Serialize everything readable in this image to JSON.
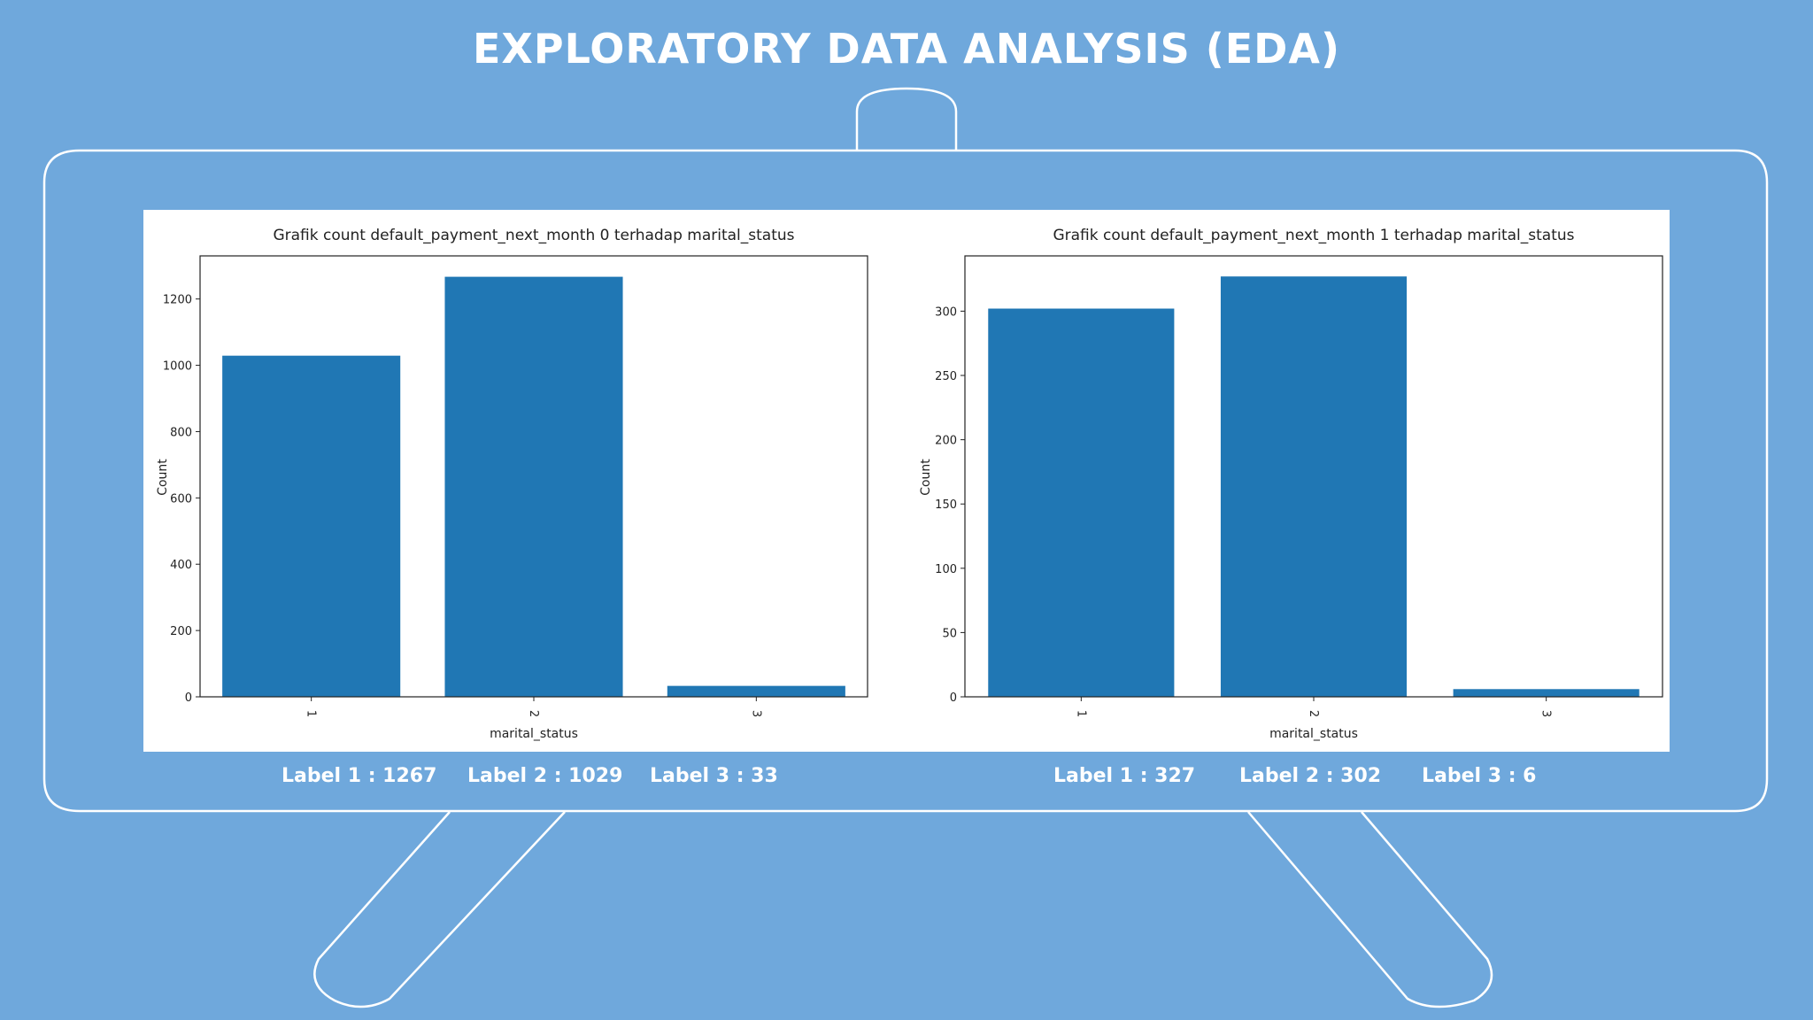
{
  "page": {
    "title": "EXPLORATORY DATA ANALYSIS (EDA)"
  },
  "colors": {
    "background": "#6fa8dc",
    "bar": "#2077b4",
    "frame": "#ffffff"
  },
  "chart_data": [
    {
      "type": "bar",
      "title": "Grafik count default_payment_next_month 0 terhadap marital_status",
      "xlabel": "marital_status",
      "ylabel": "Count",
      "categories": [
        "1",
        "2",
        "3"
      ],
      "values": [
        1029,
        1267,
        33
      ],
      "ylim": [
        0,
        1330
      ],
      "yticks": [
        0,
        200,
        400,
        600,
        800,
        1000,
        1200
      ]
    },
    {
      "type": "bar",
      "title": "Grafik count default_payment_next_month 1 terhadap marital_status",
      "xlabel": "marital_status",
      "ylabel": "Count",
      "categories": [
        "1",
        "2",
        "3"
      ],
      "values": [
        302,
        327,
        6
      ],
      "ylim": [
        0,
        343
      ],
      "yticks": [
        0,
        50,
        100,
        150,
        200,
        250,
        300
      ]
    }
  ],
  "summaries": [
    {
      "items": [
        "Label 1 : 1267",
        "Label 2 : 1029",
        "Label 3 : 33"
      ]
    },
    {
      "items": [
        "Label 1 : 327",
        "Label 2 : 302",
        "Label 3 : 6"
      ]
    }
  ]
}
